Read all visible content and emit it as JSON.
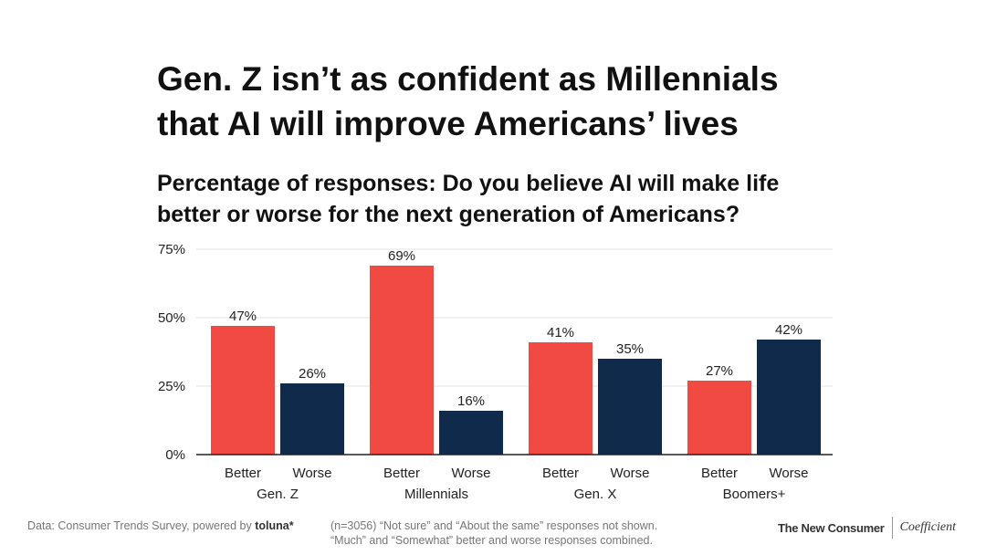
{
  "title_line1": "Gen. Z isn’t as confident as Millennials",
  "title_line2": "that AI will improve Americans’ lives",
  "subtitle_line1": "Percentage of responses: Do you believe AI will make life",
  "subtitle_line2": "better or worse for the next generation of Americans?",
  "footer": {
    "source_prefix": "Data: Consumer Trends Survey, powered by",
    "source_brand": "toluna*",
    "note_line1": "(n=3056) “Not sure” and “About the same” responses not shown.",
    "note_line2": "“Much” and “Somewhat” better and worse responses combined.",
    "brand1": "The New Consumer",
    "brand2": "Coefficient"
  },
  "chart_data": {
    "type": "bar",
    "categories": [
      "Gen. Z",
      "Millennials",
      "Gen. X",
      "Boomers+"
    ],
    "series": [
      {
        "name": "Better",
        "values": [
          47,
          69,
          41,
          27
        ],
        "labels": [
          "47%",
          "69%",
          "41%",
          "27%"
        ]
      },
      {
        "name": "Worse",
        "values": [
          26,
          16,
          35,
          42
        ],
        "labels": [
          "26%",
          "16%",
          "35%",
          "42%"
        ]
      }
    ],
    "ylim": [
      0,
      75
    ],
    "yticks": [
      0,
      25,
      50,
      75
    ],
    "ytick_labels": [
      "0%",
      "25%",
      "50%",
      "75%"
    ],
    "grid": true,
    "colors": {
      "Better": "#f04a42",
      "Worse": "#0f2a4a",
      "grid": "#e3e3e3",
      "axis": "#222222"
    }
  }
}
